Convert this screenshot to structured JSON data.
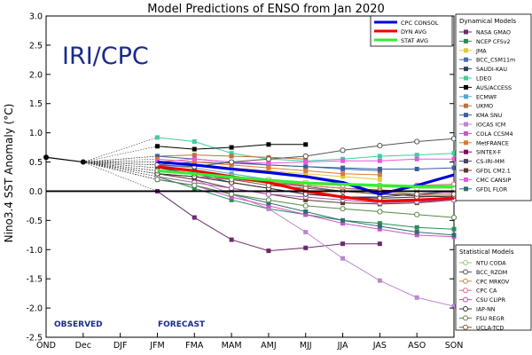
{
  "chart_data": {
    "type": "line",
    "title": "Model Predictions of ENSO from Jan 2020",
    "brand": "IRI/CPC",
    "ylabel": "Nino3.4 SST Anomaly (°C)",
    "xlabel": "",
    "categories": [
      "OND",
      "Dec",
      "DJF",
      "JFM",
      "FMA",
      "MAM",
      "AMJ",
      "MJJ",
      "JJA",
      "JAS",
      "ASO",
      "SON"
    ],
    "ylim": [
      -2.5,
      3.0
    ],
    "yticks": [
      "3.0",
      "2.5",
      "2.0",
      "1.5",
      "1.0",
      "0.5",
      "0.0",
      "-0.5",
      "-1.0",
      "-1.5",
      "-2.0",
      "-2.5"
    ],
    "grid": false,
    "observed_label": "OBSERVED",
    "forecast_label": "FORECAST",
    "observed": [
      0.58,
      0.5
    ],
    "summary_series": [
      {
        "name": "CPC CONSOL",
        "color": "#0000dd",
        "values": [
          null,
          null,
          null,
          0.5,
          0.45,
          0.38,
          0.32,
          0.25,
          0.15,
          -0.05,
          0.1,
          0.28
        ]
      },
      {
        "name": "DYN AVG",
        "color": "#ee0000",
        "values": [
          null,
          null,
          null,
          0.42,
          0.35,
          0.25,
          0.15,
          0.0,
          -0.1,
          -0.17,
          -0.15,
          -0.12
        ]
      },
      {
        "name": "STAT AVG",
        "color": "#33ee33",
        "values": [
          null,
          null,
          null,
          0.35,
          0.3,
          0.24,
          0.19,
          0.14,
          0.12,
          0.1,
          0.08,
          0.08
        ]
      }
    ],
    "dynamical_title": "Dynamical Models",
    "dynamical_models": [
      {
        "name": "NASA GMAO",
        "color": "#6b2b6b",
        "values": [
          null,
          null,
          null,
          0.0,
          -0.45,
          -0.83,
          -1.02,
          -0.97,
          -0.9,
          -0.9,
          null,
          null
        ]
      },
      {
        "name": "NCEP CFSv2",
        "color": "#2e8b57",
        "values": [
          null,
          null,
          null,
          0.25,
          0.05,
          -0.15,
          -0.3,
          -0.4,
          -0.5,
          -0.55,
          -0.62,
          -0.65
        ]
      },
      {
        "name": "JMA",
        "color": "#ddcc33",
        "values": [
          null,
          null,
          null,
          0.5,
          0.45,
          0.4,
          0.35,
          0.3,
          0.25,
          0.2,
          null,
          null
        ]
      },
      {
        "name": "BCC_CSM11m",
        "color": "#4a6fa5",
        "values": [
          null,
          null,
          null,
          0.45,
          0.5,
          0.48,
          0.45,
          0.42,
          0.38,
          0.35,
          null,
          null
        ]
      },
      {
        "name": "SAUDI-KAU",
        "color": "#2f3f5f",
        "values": [
          null,
          null,
          null,
          0.4,
          0.3,
          0.15,
          0.05,
          -0.05,
          -0.1,
          -0.1,
          -0.05,
          0.0
        ]
      },
      {
        "name": "LDEO",
        "color": "#3cd0a0",
        "values": [
          null,
          null,
          null,
          0.92,
          0.85,
          0.65,
          0.55,
          0.52,
          0.55,
          0.6,
          0.62,
          0.65
        ]
      },
      {
        "name": "AUS/ACCESS",
        "color": "#000000",
        "values": [
          null,
          null,
          null,
          0.77,
          0.72,
          0.75,
          0.8,
          0.8,
          null,
          null,
          null,
          null
        ]
      },
      {
        "name": "ECMWF",
        "color": "#4fa8d8",
        "values": [
          null,
          null,
          null,
          0.45,
          0.4,
          0.3,
          0.2,
          0.15,
          0.12,
          null,
          null,
          null
        ]
      },
      {
        "name": "UKMO",
        "color": "#c07040",
        "values": [
          null,
          null,
          null,
          0.6,
          0.62,
          0.6,
          0.58,
          0.55,
          null,
          null,
          null,
          null
        ]
      },
      {
        "name": "KMA SNU",
        "color": "#3a5fa0",
        "values": [
          null,
          null,
          null,
          0.6,
          0.55,
          0.5,
          0.45,
          0.42,
          0.4,
          0.38,
          0.38,
          0.4
        ]
      },
      {
        "name": "IOCAS ICM",
        "color": "#bb88cc",
        "values": [
          null,
          null,
          null,
          0.3,
          0.2,
          -0.05,
          -0.3,
          -0.7,
          -1.15,
          -1.53,
          -1.82,
          -1.97
        ]
      },
      {
        "name": "COLA CCSM4",
        "color": "#cc55cc",
        "values": [
          null,
          null,
          null,
          0.2,
          0.1,
          -0.1,
          -0.25,
          -0.4,
          -0.55,
          -0.65,
          -0.75,
          -0.78
        ]
      },
      {
        "name": "MetFRANCE",
        "color": "#e07a30",
        "values": [
          null,
          null,
          null,
          0.55,
          0.5,
          0.45,
          0.4,
          0.35,
          0.3,
          0.28,
          null,
          null
        ]
      },
      {
        "name": "SINTEX-F",
        "color": "#880066",
        "values": [
          null,
          null,
          null,
          0.35,
          0.3,
          0.22,
          0.15,
          0.1,
          0.05,
          0.02,
          0.0,
          -0.02
        ]
      },
      {
        "name": "CS-IRI-MM",
        "color": "#444466",
        "values": [
          null,
          null,
          null,
          0.4,
          0.35,
          0.25,
          0.15,
          0.08,
          0.0,
          -0.05,
          -0.08,
          -0.1
        ]
      },
      {
        "name": "GFDL CM2.1",
        "color": "#5a3a2a",
        "values": [
          null,
          null,
          null,
          0.3,
          0.2,
          0.05,
          -0.05,
          -0.15,
          -0.2,
          -0.22,
          -0.2,
          -0.15
        ]
      },
      {
        "name": "CMC CANSIP",
        "color": "#ee55dd",
        "values": [
          null,
          null,
          null,
          0.5,
          0.55,
          0.5,
          0.48,
          0.5,
          0.52,
          0.52,
          0.55,
          0.55
        ]
      },
      {
        "name": "GFDL FLOR",
        "color": "#2f6f6f",
        "values": [
          null,
          null,
          null,
          0.2,
          0.1,
          -0.05,
          -0.2,
          -0.35,
          -0.5,
          -0.6,
          -0.7,
          -0.75
        ]
      }
    ],
    "statistical_title": "Statistical Models",
    "statistical_models": [
      {
        "name": "NTU CODA",
        "color": "#99cc66",
        "values": [
          null,
          null,
          null,
          0.35,
          0.3,
          0.25,
          0.2,
          0.15,
          0.1,
          0.08,
          0.05,
          0.05
        ]
      },
      {
        "name": "BCC_RZDM",
        "color": "#555555",
        "values": [
          null,
          null,
          null,
          0.45,
          0.42,
          0.5,
          0.55,
          0.6,
          0.7,
          0.78,
          0.85,
          0.9
        ]
      },
      {
        "name": "CPC MRKOV",
        "color": "#cc8844",
        "values": [
          null,
          null,
          null,
          0.3,
          0.25,
          0.2,
          0.15,
          0.1,
          0.05,
          0.0,
          -0.05,
          -0.1
        ]
      },
      {
        "name": "CPC CA",
        "color": "#dd6688",
        "values": [
          null,
          null,
          null,
          0.3,
          0.25,
          0.2,
          0.15,
          0.12,
          0.1,
          0.1,
          0.1,
          0.12
        ]
      },
      {
        "name": "CSU CLIPR",
        "color": "#aa55aa",
        "values": [
          null,
          null,
          null,
          0.25,
          0.15,
          0.05,
          -0.05,
          -0.1,
          -0.15,
          -0.2,
          -0.18,
          -0.15
        ]
      },
      {
        "name": "IAP-NN",
        "color": "#333333",
        "values": [
          null,
          null,
          null,
          0.3,
          0.25,
          0.15,
          0.05,
          -0.05,
          -0.1,
          -0.12,
          -0.1,
          -0.08
        ]
      },
      {
        "name": "FSU REGR",
        "color": "#558844",
        "values": [
          null,
          null,
          null,
          0.2,
          0.1,
          -0.05,
          -0.15,
          -0.25,
          -0.3,
          -0.35,
          -0.4,
          -0.45
        ]
      },
      {
        "name": "UCLA-TCD",
        "color": "#7a5a3a",
        "values": [
          null,
          null,
          null,
          0.35,
          0.3,
          0.2,
          0.1,
          0.05,
          0.0,
          -0.05,
          -0.05,
          -0.05
        ]
      }
    ]
  }
}
